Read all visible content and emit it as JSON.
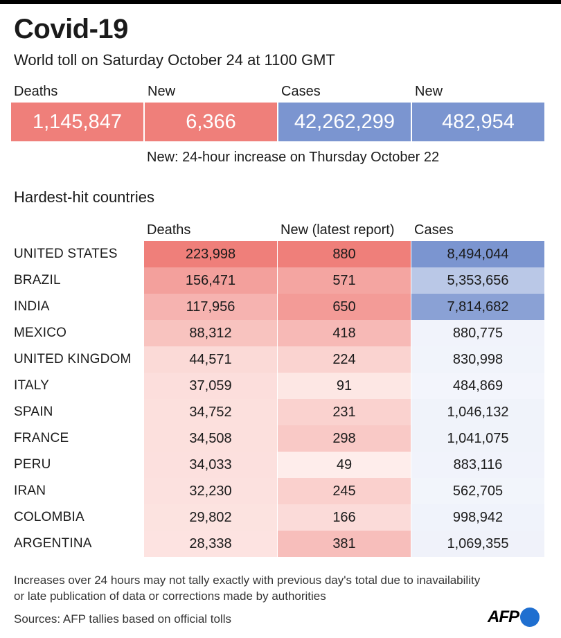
{
  "title": "Covid-19",
  "subtitle": "World toll on Saturday October 24 at 1100 GMT",
  "summary": [
    {
      "label": "Deaths",
      "value": "1,145,847",
      "color": "#ef7f7a"
    },
    {
      "label": "New",
      "value": "6,366",
      "color": "#ef7f7a"
    },
    {
      "label": "Cases",
      "value": "42,262,299",
      "color": "#7b95d0"
    },
    {
      "label": "New",
      "value": "482,954",
      "color": "#7b95d0"
    }
  ],
  "note": "New: 24-hour increase on Thursday October 22",
  "section_title": "Hardest-hit countries",
  "chart_data": {
    "type": "table",
    "columns": [
      "Deaths",
      "New (latest report)",
      "Cases"
    ],
    "rows": [
      {
        "country": "UNITED STATES",
        "deaths": "223,998",
        "new": "880",
        "cases": "8,494,044",
        "deaths_n": 223998,
        "new_n": 880,
        "cases_n": 8494044
      },
      {
        "country": "BRAZIL",
        "deaths": "156,471",
        "new": "571",
        "cases": "5,353,656",
        "deaths_n": 156471,
        "new_n": 571,
        "cases_n": 5353656
      },
      {
        "country": "INDIA",
        "deaths": "117,956",
        "new": "650",
        "cases": "7,814,682",
        "deaths_n": 117956,
        "new_n": 650,
        "cases_n": 7814682
      },
      {
        "country": "MEXICO",
        "deaths": "88,312",
        "new": "418",
        "cases": "880,775",
        "deaths_n": 88312,
        "new_n": 418,
        "cases_n": 880775
      },
      {
        "country": "UNITED KINGDOM",
        "deaths": "44,571",
        "new": "224",
        "cases": "830,998",
        "deaths_n": 44571,
        "new_n": 224,
        "cases_n": 830998
      },
      {
        "country": "ITALY",
        "deaths": "37,059",
        "new": "91",
        "cases": "484,869",
        "deaths_n": 37059,
        "new_n": 91,
        "cases_n": 484869
      },
      {
        "country": "SPAIN",
        "deaths": "34,752",
        "new": "231",
        "cases": "1,046,132",
        "deaths_n": 34752,
        "new_n": 231,
        "cases_n": 1046132
      },
      {
        "country": "FRANCE",
        "deaths": "34,508",
        "new": "298",
        "cases": "1,041,075",
        "deaths_n": 34508,
        "new_n": 298,
        "cases_n": 1041075
      },
      {
        "country": "PERU",
        "deaths": "34,033",
        "new": "49",
        "cases": "883,116",
        "deaths_n": 34033,
        "new_n": 49,
        "cases_n": 883116
      },
      {
        "country": "IRAN",
        "deaths": "32,230",
        "new": "245",
        "cases": "562,705",
        "deaths_n": 32230,
        "new_n": 245,
        "cases_n": 562705
      },
      {
        "country": "COLOMBIA",
        "deaths": "29,802",
        "new": "166",
        "cases": "998,942",
        "deaths_n": 29802,
        "new_n": 166,
        "cases_n": 998942
      },
      {
        "country": "ARGENTINA",
        "deaths": "28,338",
        "new": "381",
        "cases": "1,069,355",
        "deaths_n": 28338,
        "new_n": 381,
        "cases_n": 1069355
      }
    ],
    "colors": {
      "deaths": "#ef7f7a",
      "new": "#ef7f7a",
      "cases": "#7b95d0"
    }
  },
  "footnote": "Increases over 24 hours may not tally exactly with previous day's total due to inavailability or late publication of data or corrections made by authorities",
  "source": "Sources: AFP tallies based on official tolls",
  "logo": "AFP"
}
